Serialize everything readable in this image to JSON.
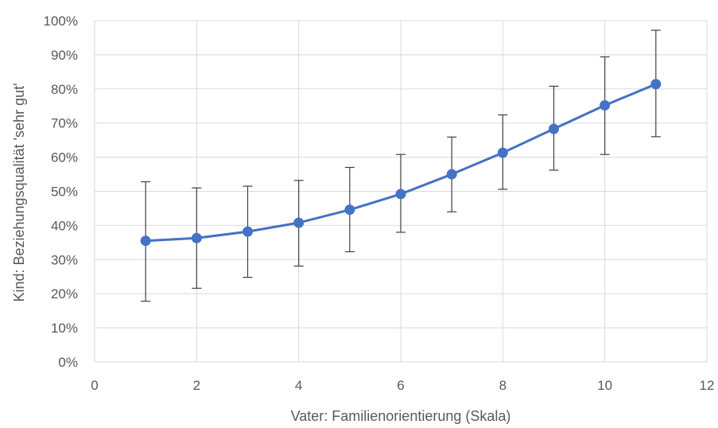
{
  "chart_data": {
    "type": "line",
    "title": "",
    "xlabel": "Vater: Familienorientierung (Skala)",
    "ylabel": "Kind: Beziehungsqualität 'sehr gut'",
    "xlim": [
      0,
      12
    ],
    "ylim": [
      0,
      100
    ],
    "x_ticks": [
      0,
      2,
      4,
      6,
      8,
      10,
      12
    ],
    "x_tick_labels": [
      "0",
      "2",
      "4",
      "6",
      "8",
      "10",
      "12"
    ],
    "y_ticks": [
      0,
      10,
      20,
      30,
      40,
      50,
      60,
      70,
      80,
      90,
      100
    ],
    "y_tick_labels": [
      "0%",
      "10%",
      "20%",
      "30%",
      "40%",
      "50%",
      "60%",
      "70%",
      "80%",
      "90%",
      "100%"
    ],
    "grid": true,
    "legend": "none",
    "series": [
      {
        "color": "#4472c4",
        "x": [
          1,
          2,
          3,
          4,
          5,
          6,
          7,
          8,
          9,
          10,
          11
        ],
        "y": [
          35.5,
          36.3,
          38.2,
          40.8,
          44.6,
          49.2,
          55.0,
          61.3,
          68.3,
          75.2,
          81.4
        ],
        "error_low": [
          17.8,
          21.6,
          24.8,
          28.1,
          32.3,
          38.0,
          44.0,
          50.6,
          56.2,
          60.8,
          66.0
        ],
        "error_high": [
          52.8,
          51.0,
          51.5,
          53.2,
          57.0,
          60.8,
          65.9,
          72.4,
          80.8,
          89.4,
          97.2
        ]
      }
    ]
  }
}
